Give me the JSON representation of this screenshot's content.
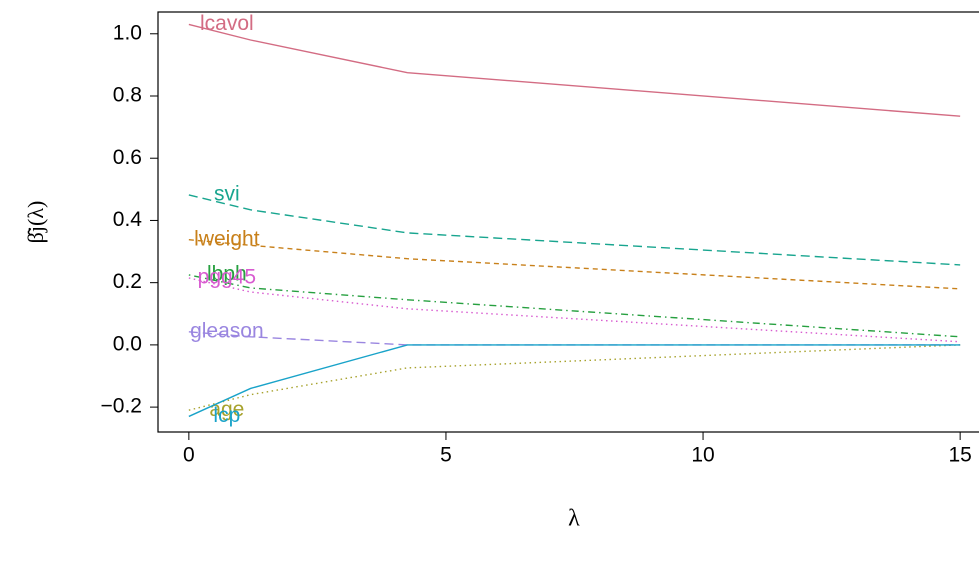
{
  "chart_data": {
    "type": "line",
    "xlabel": "λ",
    "ylabel": "β̂j(λ)",
    "x": [
      0,
      1.2,
      4.25,
      15
    ],
    "series": [
      {
        "name": "lcavol",
        "color": "#d36c83",
        "linestyle": "solid",
        "values": [
          1.03,
          0.98,
          0.875,
          0.735
        ]
      },
      {
        "name": "svi",
        "color": "#18a58f",
        "linestyle": "dashed",
        "values": [
          0.482,
          0.434,
          0.36,
          0.257
        ]
      },
      {
        "name": "lweight",
        "color": "#c8801a",
        "linestyle": "dotdash-short",
        "values": [
          0.338,
          0.32,
          0.277,
          0.18
        ]
      },
      {
        "name": "lbph",
        "color": "#27a040",
        "linestyle": "dotdash",
        "values": [
          0.225,
          0.183,
          0.145,
          0.026
        ]
      },
      {
        "name": "pgg45",
        "color": "#d85bd0",
        "linestyle": "dotted",
        "values": [
          0.215,
          0.17,
          0.116,
          0.01
        ]
      },
      {
        "name": "gleason",
        "color": "#9a86e0",
        "linestyle": "dashed",
        "values": [
          0.042,
          0.026,
          0,
          0
        ]
      },
      {
        "name": "age",
        "color": "#a7a22c",
        "linestyle": "dotted",
        "values": [
          -0.21,
          -0.16,
          -0.074,
          0
        ]
      },
      {
        "name": "lcp",
        "color": "#19a3c9",
        "linestyle": "solid",
        "values": [
          -0.23,
          -0.14,
          0,
          0
        ]
      }
    ],
    "xlim": [
      -0.6,
      15.6
    ],
    "ylim": [
      -0.28,
      1.07
    ],
    "xticks": [
      0,
      5,
      10,
      15
    ],
    "yticks": [
      {
        "value": -0.2,
        "label": "−0.2"
      },
      {
        "value": 0,
        "label": "0.0"
      },
      0.2,
      0.4,
      0.6,
      0.8,
      {
        "value": 1,
        "label": "1.0"
      }
    ]
  }
}
